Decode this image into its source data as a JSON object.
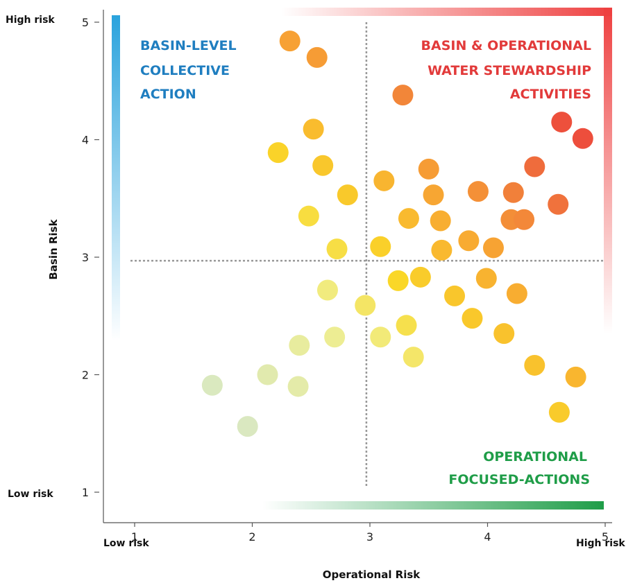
{
  "colors": {
    "basin_blue": "#2aa3dd",
    "stewardship_red": "#ee4040",
    "operational_green": "#1f9d48",
    "axis": "#555555",
    "divider": "#999999"
  },
  "labels": {
    "y_high": "High risk",
    "y_low": "Low risk",
    "x_low": "Low risk",
    "x_high": "High risk"
  },
  "quadrants": {
    "basin_level": [
      "BASIN-LEVEL",
      "COLLECTIVE",
      "ACTION"
    ],
    "stewardship": [
      "BASIN & OPERATIONAL",
      "WATER STEWARDSHIP",
      "ACTIVITIES"
    ],
    "operational": [
      "OPERATIONAL",
      "FOCUSED-ACTIONS"
    ]
  },
  "chart_data": {
    "type": "scatter",
    "xlabel": "Operational  Risk",
    "ylabel": "Basin Risk",
    "xlim": [
      0.75,
      5.05
    ],
    "ylim": [
      0.85,
      5.1
    ],
    "xticks": [
      "1",
      "2",
      "3",
      "4",
      "5"
    ],
    "yticks": [
      "1",
      "2",
      "3",
      "4",
      "5"
    ],
    "dividers": {
      "x": 2.97,
      "y": 2.97
    },
    "grid": false,
    "points": [
      {
        "x": 1.66,
        "y": 1.91
      },
      {
        "x": 1.96,
        "y": 1.56
      },
      {
        "x": 2.13,
        "y": 2.0
      },
      {
        "x": 2.39,
        "y": 1.9
      },
      {
        "x": 2.4,
        "y": 2.25
      },
      {
        "x": 2.7,
        "y": 2.32
      },
      {
        "x": 2.48,
        "y": 3.35
      },
      {
        "x": 2.64,
        "y": 2.72
      },
      {
        "x": 2.72,
        "y": 3.07
      },
      {
        "x": 2.96,
        "y": 2.59
      },
      {
        "x": 3.09,
        "y": 2.32
      },
      {
        "x": 3.09,
        "y": 3.09
      },
      {
        "x": 3.24,
        "y": 2.8
      },
      {
        "x": 3.31,
        "y": 2.42
      },
      {
        "x": 3.37,
        "y": 2.15
      },
      {
        "x": 3.43,
        "y": 2.83
      },
      {
        "x": 3.12,
        "y": 3.65
      },
      {
        "x": 3.33,
        "y": 3.33
      },
      {
        "x": 3.54,
        "y": 3.53
      },
      {
        "x": 3.6,
        "y": 3.31
      },
      {
        "x": 3.61,
        "y": 3.06
      },
      {
        "x": 3.72,
        "y": 2.67
      },
      {
        "x": 3.84,
        "y": 3.14
      },
      {
        "x": 3.87,
        "y": 2.48
      },
      {
        "x": 3.92,
        "y": 3.56
      },
      {
        "x": 3.99,
        "y": 2.82
      },
      {
        "x": 4.05,
        "y": 3.08
      },
      {
        "x": 4.14,
        "y": 2.35
      },
      {
        "x": 4.25,
        "y": 2.69
      },
      {
        "x": 4.22,
        "y": 3.55
      },
      {
        "x": 4.2,
        "y": 3.32
      },
      {
        "x": 4.31,
        "y": 3.32
      },
      {
        "x": 3.5,
        "y": 3.75
      },
      {
        "x": 2.22,
        "y": 3.89
      },
      {
        "x": 2.6,
        "y": 3.78
      },
      {
        "x": 2.81,
        "y": 3.53
      },
      {
        "x": 2.52,
        "y": 4.09
      },
      {
        "x": 4.4,
        "y": 3.77
      },
      {
        "x": 4.6,
        "y": 3.45
      },
      {
        "x": 4.4,
        "y": 2.08
      },
      {
        "x": 3.28,
        "y": 4.38
      },
      {
        "x": 2.32,
        "y": 4.84
      },
      {
        "x": 2.55,
        "y": 4.7
      },
      {
        "x": 4.63,
        "y": 4.15
      },
      {
        "x": 4.81,
        "y": 4.01
      },
      {
        "x": 4.75,
        "y": 1.98
      },
      {
        "x": 4.61,
        "y": 1.68
      }
    ]
  }
}
